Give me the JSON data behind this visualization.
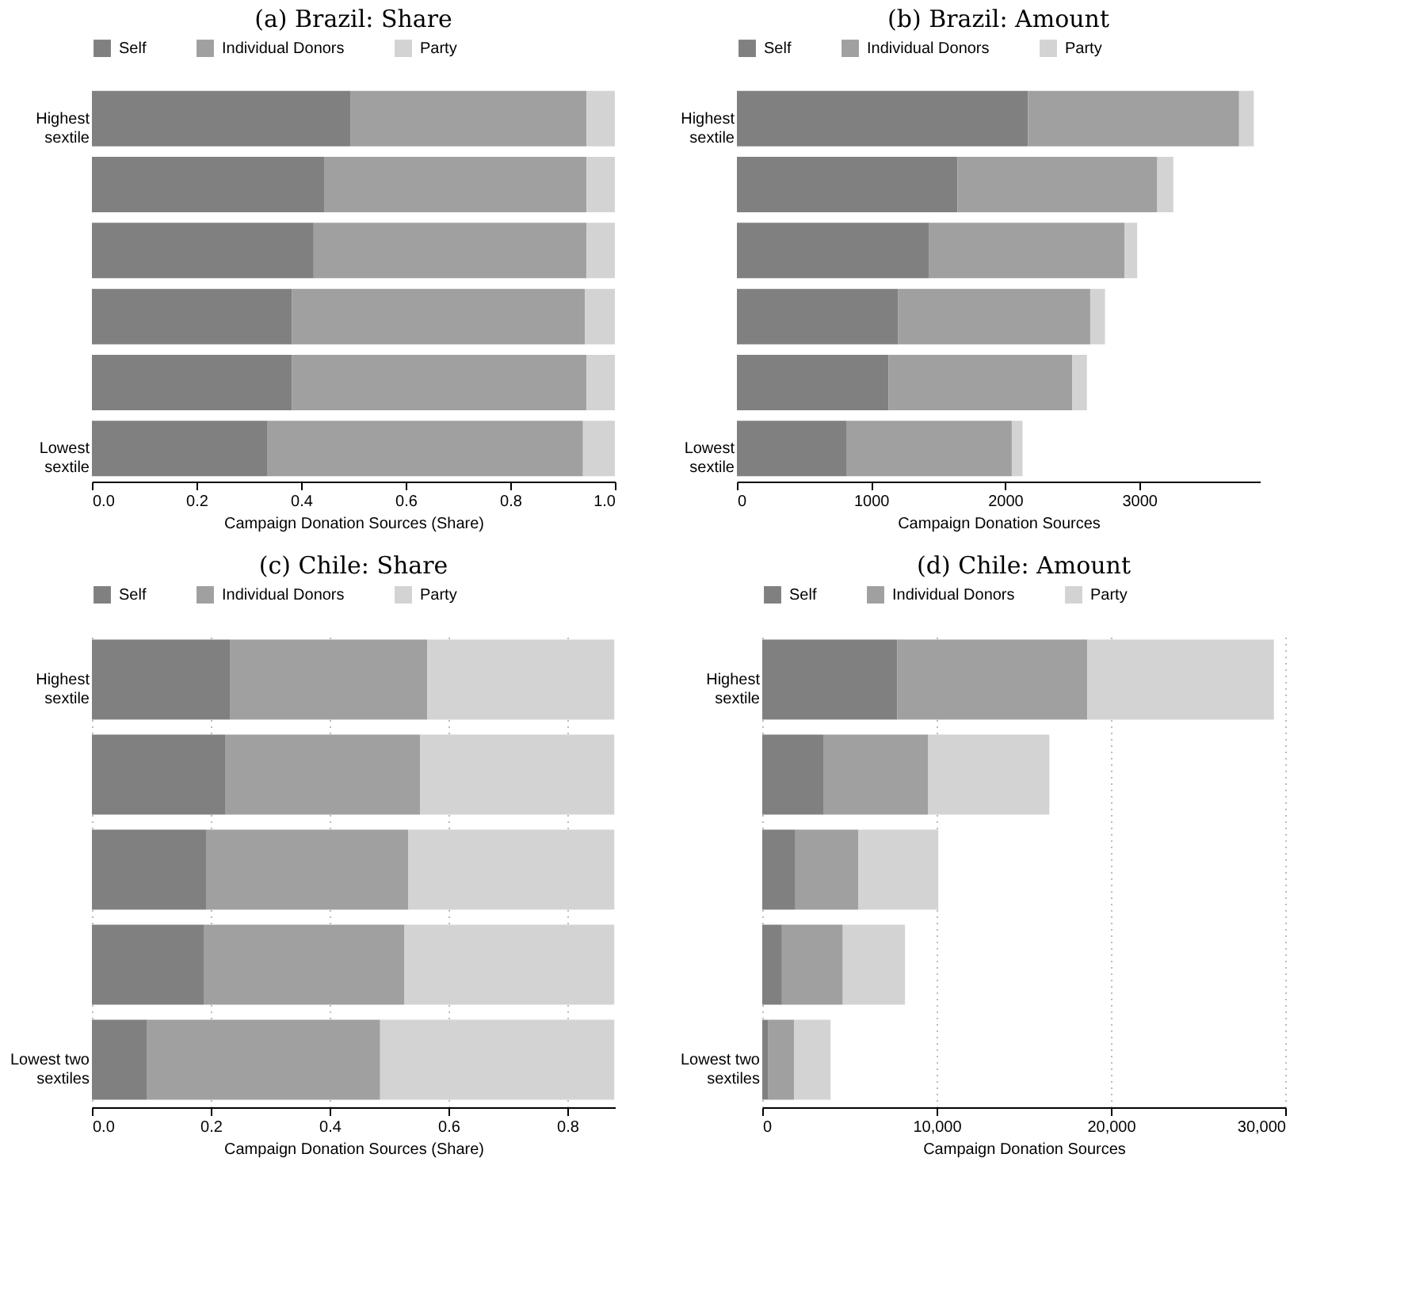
{
  "chart_data": [
    {
      "type": "bar",
      "orientation": "horizontal",
      "stacked": true,
      "title": "(a) Brazil: Share",
      "xlabel": "Campaign Donation Sources (Share)",
      "categories": [
        "Highest sextile",
        null,
        null,
        null,
        null,
        "Lowest sextile"
      ],
      "legend": "top",
      "grid": false,
      "xlim": [
        0,
        1
      ],
      "xticks": [
        {
          "value": 0,
          "label": "0.0"
        },
        0.2,
        0.4,
        0.6,
        0.8,
        {
          "value": 1,
          "label": "1.0"
        }
      ],
      "series": [
        {
          "name": "Self",
          "color": "#808080",
          "values": [
            0.494,
            0.445,
            0.424,
            0.382,
            0.382,
            0.336
          ]
        },
        {
          "name": "Individual Donors",
          "color": "#a0a0a0",
          "values": [
            0.452,
            0.501,
            0.522,
            0.561,
            0.564,
            0.603
          ]
        },
        {
          "name": "Party",
          "color": "#d3d3d3",
          "values": [
            0.054,
            0.054,
            0.054,
            0.057,
            0.054,
            0.061
          ]
        }
      ]
    },
    {
      "type": "bar",
      "orientation": "horizontal",
      "stacked": true,
      "title": "(b) Brazil: Amount",
      "xlabel": "Campaign Donation Sources",
      "categories": [
        "Highest sextile",
        null,
        null,
        null,
        null,
        "Lowest sextile"
      ],
      "legend": "top",
      "grid": false,
      "xlim": [
        0,
        3900
      ],
      "xticks": [
        0,
        1000,
        2000,
        3000
      ],
      "series": [
        {
          "name": "Self",
          "color": "#808080",
          "values": [
            2170,
            1645,
            1430,
            1200,
            1130,
            820
          ]
        },
        {
          "name": "Individual Donors",
          "color": "#a0a0a0",
          "values": [
            1575,
            1490,
            1460,
            1435,
            1370,
            1230
          ]
        },
        {
          "name": "Party",
          "color": "#d3d3d3",
          "values": [
            110,
            120,
            95,
            110,
            110,
            80
          ]
        }
      ]
    },
    {
      "type": "bar",
      "orientation": "horizontal",
      "stacked": true,
      "title": "(c) Chile: Share",
      "xlabel": "Campaign Donation Sources (Share)",
      "categories": [
        "Highest sextile",
        null,
        null,
        null,
        "Lowest two sextiles"
      ],
      "legend": "top",
      "grid": "x",
      "xlim": [
        0,
        0.88
      ],
      "xticks": [
        {
          "value": 0,
          "label": "0.0"
        },
        0.2,
        0.4,
        0.6,
        0.8
      ],
      "series": [
        {
          "name": "Self",
          "color": "#808080",
          "values": [
            0.232,
            0.224,
            0.192,
            0.189,
            0.093
          ]
        },
        {
          "name": "Individual Donors",
          "color": "#a0a0a0",
          "values": [
            0.332,
            0.328,
            0.34,
            0.337,
            0.392
          ]
        },
        {
          "name": "Party",
          "color": "#d3d3d3",
          "values": [
            0.315,
            0.327,
            0.347,
            0.353,
            0.394
          ]
        }
      ]
    },
    {
      "type": "bar",
      "orientation": "horizontal",
      "stacked": true,
      "title": "(d) Chile: Amount",
      "xlabel": "Campaign Donation Sources",
      "categories": [
        "Highest sextile",
        null,
        null,
        null,
        "Lowest two sextiles"
      ],
      "legend": "top",
      "grid": "x",
      "xlim": [
        0,
        30000
      ],
      "xticks": [
        0,
        {
          "value": 10000,
          "label": "10,000"
        },
        {
          "value": 20000,
          "label": "20,000"
        },
        {
          "value": 30000,
          "label": "30,000"
        }
      ],
      "series": [
        {
          "name": "Self",
          "color": "#808080",
          "values": [
            7750,
            3500,
            1900,
            1130,
            350
          ]
        },
        {
          "name": "Individual Donors",
          "color": "#a0a0a0",
          "values": [
            10900,
            6000,
            3600,
            3490,
            1480
          ]
        },
        {
          "name": "Party",
          "color": "#d3d3d3",
          "values": [
            10700,
            6970,
            4600,
            3570,
            2090
          ]
        }
      ]
    }
  ]
}
